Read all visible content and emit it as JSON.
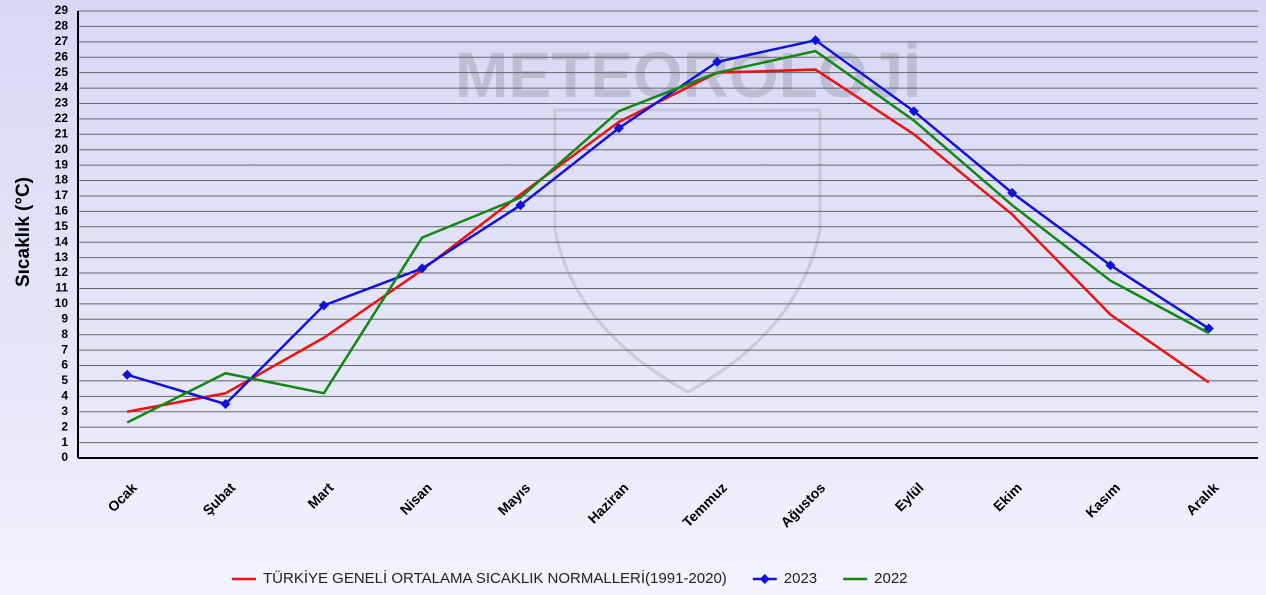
{
  "chart_data": {
    "type": "line",
    "watermark": "METEOROLOJİ",
    "ylabel": "Sıcaklık (°C)",
    "categories": [
      "Ocak",
      "Şubat",
      "Mart",
      "Nisan",
      "Mayıs",
      "Haziran",
      "Temmuz",
      "Ağustos",
      "Eylül",
      "Ekim",
      "Kasım",
      "Aralık"
    ],
    "series": [
      {
        "name": "TÜRKİYE GENELİ ORTALAMA SICAKLIK NORMALLERİ(1991-2020)",
        "color": "#ee1111",
        "marker": false,
        "values": [
          3.0,
          4.2,
          7.8,
          12.2,
          17.1,
          21.8,
          25.0,
          25.2,
          21.0,
          15.8,
          9.3,
          4.9
        ]
      },
      {
        "name": "2023",
        "color": "#1111dd",
        "marker": true,
        "values": [
          5.4,
          3.5,
          9.9,
          12.3,
          16.4,
          21.4,
          25.7,
          27.1,
          22.5,
          17.2,
          12.5,
          8.4
        ]
      },
      {
        "name": "2022",
        "color": "#118811",
        "marker": false,
        "values": [
          2.3,
          5.5,
          4.2,
          14.3,
          16.9,
          22.5,
          25.0,
          26.4,
          21.9,
          16.4,
          11.5,
          8.1
        ]
      }
    ],
    "ylim": [
      0,
      29
    ],
    "yticks": [
      0,
      1,
      2,
      3,
      4,
      5,
      6,
      7,
      8,
      9,
      10,
      11,
      12,
      13,
      14,
      15,
      16,
      17,
      18,
      19,
      20,
      21,
      22,
      23,
      24,
      25,
      26,
      27,
      28,
      29
    ],
    "grid": true,
    "legend": "bottom"
  }
}
